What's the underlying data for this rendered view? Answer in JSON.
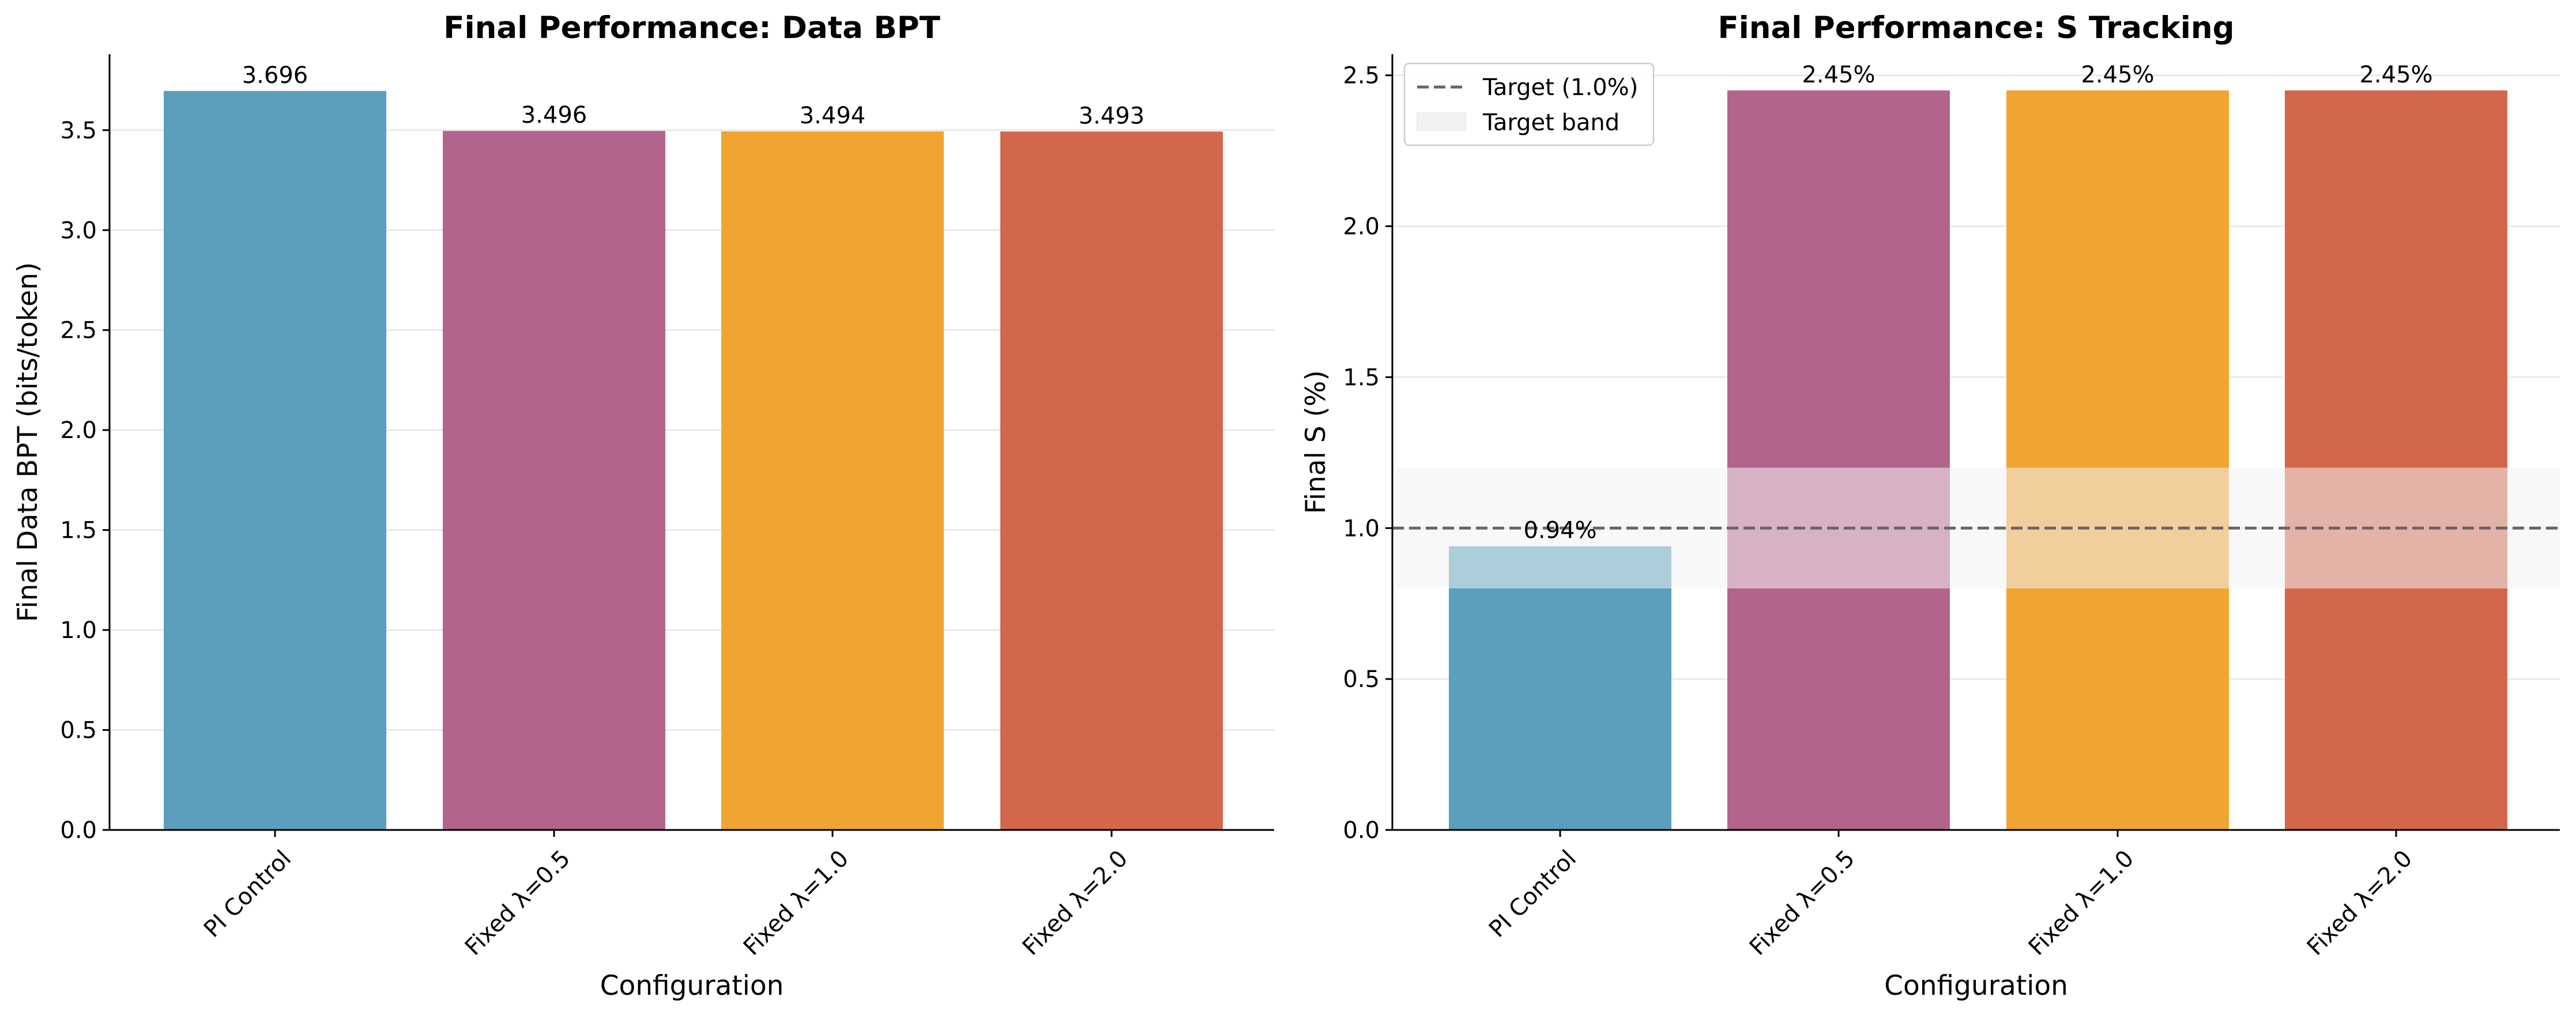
{
  "chart_data": [
    {
      "type": "bar",
      "title": "Final Performance: Data BPT",
      "xlabel": "Configuration",
      "ylabel": "Final Data BPT (bits/token)",
      "categories": [
        "PI Control",
        "Fixed λ=0.5",
        "Fixed λ=1.0",
        "Fixed λ=2.0"
      ],
      "values": [
        3.696,
        3.496,
        3.494,
        3.493
      ],
      "value_labels": [
        "3.696",
        "3.496",
        "3.494",
        "3.493"
      ],
      "colors": [
        "#5b9fbd",
        "#b3648c",
        "#f0a533",
        "#d3674c"
      ],
      "ylim": [
        0,
        3.88
      ],
      "yticks": [
        0,
        0.5,
        1,
        1.5,
        2,
        2.5,
        3,
        3.5
      ],
      "ytick_labels": [
        "0.0",
        "0.5",
        "1.0",
        "1.5",
        "2.0",
        "2.5",
        "3.0",
        "3.5"
      ],
      "grid": true
    },
    {
      "type": "bar",
      "title": "Final Performance: S Tracking",
      "xlabel": "Configuration",
      "ylabel": "Final S (%)",
      "categories": [
        "PI Control",
        "Fixed λ=0.5",
        "Fixed λ=1.0",
        "Fixed λ=2.0"
      ],
      "values": [
        0.94,
        2.45,
        2.45,
        2.45
      ],
      "value_labels": [
        "0.94%",
        "2.45%",
        "2.45%",
        "2.45%"
      ],
      "colors": [
        "#5b9fbd",
        "#b3648c",
        "#f0a533",
        "#d3674c"
      ],
      "ylim": [
        0,
        2.57
      ],
      "yticks": [
        0,
        0.5,
        1,
        1.5,
        2,
        2.5
      ],
      "ytick_labels": [
        "0.0",
        "0.5",
        "1.0",
        "1.5",
        "2.0",
        "2.5"
      ],
      "grid": true,
      "target_line": {
        "value": 1.0,
        "label": "Target (1.0%)",
        "color": "#666666"
      },
      "target_band": {
        "range": [
          0.8,
          1.2
        ],
        "label": "Target band",
        "color": "#eeeeee"
      },
      "legend_position": "upper-left"
    }
  ]
}
